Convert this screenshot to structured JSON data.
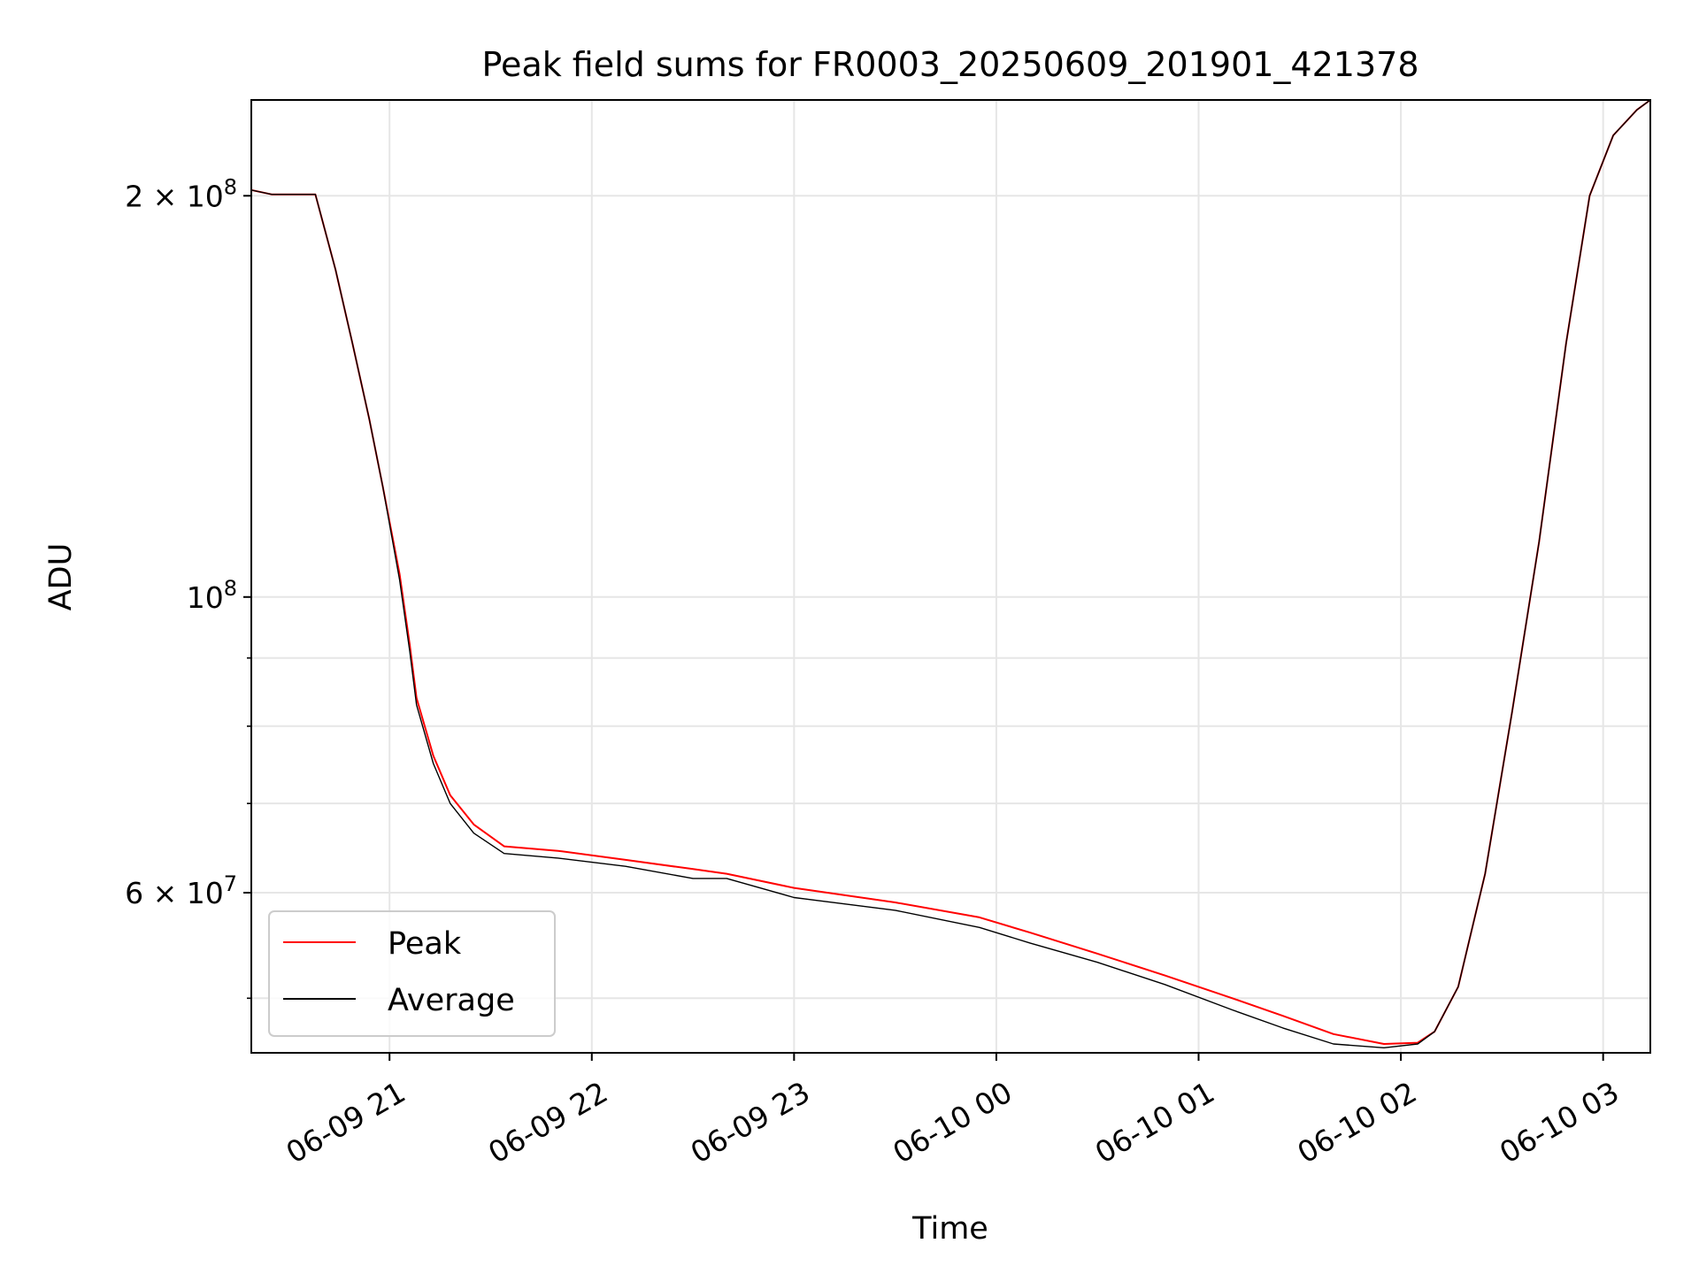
{
  "chart_data": {
    "type": "line",
    "title": "Peak field sums for FR0003_20250609_201901_421378",
    "xlabel": "Time",
    "ylabel": "ADU",
    "y_scale": "log",
    "ylim": [
      45500000,
      236000000
    ],
    "xlim": [
      "2025-06-09 20:19",
      "2025-06-10 03:14"
    ],
    "x_ticks": [
      {
        "t": "2025-06-09 21:00",
        "label": "06-09 21"
      },
      {
        "t": "2025-06-09 22:00",
        "label": "06-09 22"
      },
      {
        "t": "2025-06-09 23:00",
        "label": "06-09 23"
      },
      {
        "t": "2025-06-10 00:00",
        "label": "06-10 00"
      },
      {
        "t": "2025-06-10 01:00",
        "label": "06-10 01"
      },
      {
        "t": "2025-06-10 02:00",
        "label": "06-10 02"
      },
      {
        "t": "2025-06-10 03:00",
        "label": "06-10 03"
      }
    ],
    "y_major_ticks": [
      {
        "value": 60000000,
        "base": "6 × 10",
        "exp": "7"
      },
      {
        "value": 100000000,
        "base": "10",
        "exp": "8"
      },
      {
        "value": 200000000,
        "base": "2 × 10",
        "exp": "8"
      }
    ],
    "y_minor_ticks": [
      50000000,
      70000000,
      80000000,
      90000000
    ],
    "grid": true,
    "legend_position": "lower-left",
    "series": [
      {
        "name": "Peak",
        "color": "#ff0000",
        "points": [
          [
            "2025-06-09 20:19",
            202000000
          ],
          [
            "2025-06-09 20:25",
            200500000
          ],
          [
            "2025-06-09 20:38",
            200500000
          ],
          [
            "2025-06-09 20:44",
            176000000
          ],
          [
            "2025-06-09 20:49",
            155000000
          ],
          [
            "2025-06-09 20:54",
            136000000
          ],
          [
            "2025-06-09 20:58",
            121000000
          ],
          [
            "2025-06-09 21:03",
            104000000
          ],
          [
            "2025-06-09 21:06",
            92000000
          ],
          [
            "2025-06-09 21:08",
            84000000
          ],
          [
            "2025-06-09 21:13",
            76000000
          ],
          [
            "2025-06-09 21:18",
            71000000
          ],
          [
            "2025-06-09 21:25",
            67500000
          ],
          [
            "2025-06-09 21:34",
            65000000
          ],
          [
            "2025-06-09 21:50",
            64500000
          ],
          [
            "2025-06-09 22:10",
            63500000
          ],
          [
            "2025-06-09 22:30",
            62500000
          ],
          [
            "2025-06-09 22:40",
            62000000
          ],
          [
            "2025-06-09 23:00",
            60500000
          ],
          [
            "2025-06-09 23:30",
            59000000
          ],
          [
            "2025-06-09 23:55",
            57500000
          ],
          [
            "2025-06-10 00:10",
            56000000
          ],
          [
            "2025-06-10 00:30",
            54000000
          ],
          [
            "2025-06-10 00:50",
            52000000
          ],
          [
            "2025-06-10 01:10",
            50000000
          ],
          [
            "2025-06-10 01:25",
            48500000
          ],
          [
            "2025-06-10 01:40",
            47000000
          ],
          [
            "2025-06-10 01:55",
            46200000
          ],
          [
            "2025-06-10 02:05",
            46300000
          ],
          [
            "2025-06-10 02:10",
            47200000
          ],
          [
            "2025-06-10 02:17",
            51000000
          ],
          [
            "2025-06-10 02:25",
            62000000
          ],
          [
            "2025-06-10 02:33",
            82000000
          ],
          [
            "2025-06-10 02:41",
            110000000
          ],
          [
            "2025-06-10 02:49",
            155000000
          ],
          [
            "2025-06-10 02:56",
            200000000
          ],
          [
            "2025-06-10 03:03",
            222000000
          ],
          [
            "2025-06-10 03:10",
            232000000
          ],
          [
            "2025-06-10 03:14",
            236000000
          ]
        ]
      },
      {
        "name": "Average",
        "color": "#000000",
        "points": [
          [
            "2025-06-09 20:19",
            202000000
          ],
          [
            "2025-06-09 20:25",
            200500000
          ],
          [
            "2025-06-09 20:38",
            200500000
          ],
          [
            "2025-06-09 20:44",
            176000000
          ],
          [
            "2025-06-09 20:49",
            155000000
          ],
          [
            "2025-06-09 20:54",
            136000000
          ],
          [
            "2025-06-09 20:58",
            121000000
          ],
          [
            "2025-06-09 21:03",
            103000000
          ],
          [
            "2025-06-09 21:06",
            91000000
          ],
          [
            "2025-06-09 21:08",
            83000000
          ],
          [
            "2025-06-09 21:13",
            75000000
          ],
          [
            "2025-06-09 21:18",
            70000000
          ],
          [
            "2025-06-09 21:25",
            66500000
          ],
          [
            "2025-06-09 21:34",
            64200000
          ],
          [
            "2025-06-09 21:50",
            63700000
          ],
          [
            "2025-06-09 22:10",
            62800000
          ],
          [
            "2025-06-09 22:30",
            61500000
          ],
          [
            "2025-06-09 22:40",
            61500000
          ],
          [
            "2025-06-09 23:00",
            59500000
          ],
          [
            "2025-06-09 23:30",
            58200000
          ],
          [
            "2025-06-09 23:55",
            56500000
          ],
          [
            "2025-06-10 00:10",
            55000000
          ],
          [
            "2025-06-10 00:30",
            53200000
          ],
          [
            "2025-06-10 00:50",
            51200000
          ],
          [
            "2025-06-10 01:10",
            49000000
          ],
          [
            "2025-06-10 01:25",
            47500000
          ],
          [
            "2025-06-10 01:40",
            46200000
          ],
          [
            "2025-06-10 01:55",
            45900000
          ],
          [
            "2025-06-10 02:05",
            46200000
          ],
          [
            "2025-06-10 02:10",
            47200000
          ],
          [
            "2025-06-10 02:17",
            51000000
          ],
          [
            "2025-06-10 02:25",
            62000000
          ],
          [
            "2025-06-10 02:33",
            82000000
          ],
          [
            "2025-06-10 02:41",
            110000000
          ],
          [
            "2025-06-10 02:49",
            155000000
          ],
          [
            "2025-06-10 02:56",
            200000000
          ],
          [
            "2025-06-10 03:03",
            222000000
          ],
          [
            "2025-06-10 03:10",
            232000000
          ],
          [
            "2025-06-10 03:14",
            236000000
          ]
        ]
      }
    ]
  }
}
